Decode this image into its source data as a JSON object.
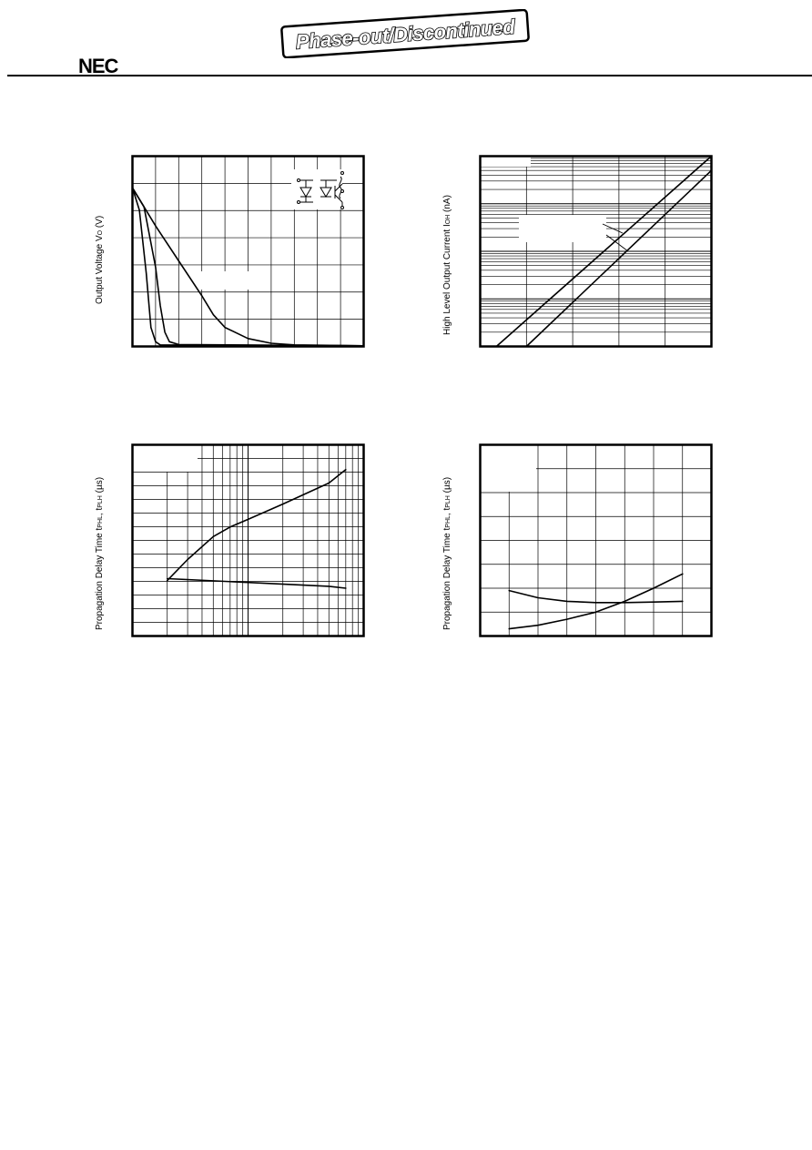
{
  "header": {
    "logo_text": "NEC",
    "stamp_text": "Phase-out/Discontinued"
  },
  "chart_data": [
    {
      "id": "output-voltage",
      "type": "line",
      "title": "",
      "ylabel": "Output Voltage V",
      "ylabel_sub": "O",
      "ylabel_unit": " (V)",
      "xlabel": "",
      "xlim": [
        0,
        10
      ],
      "ylim": [
        0,
        6
      ],
      "xscale": "linear",
      "yscale": "linear",
      "grid": true,
      "has_inset_circuit": true,
      "series": [
        {
          "x": [
            0,
            0.3,
            0.6,
            0.8,
            1.0,
            1.2,
            10
          ],
          "y": [
            5,
            4.3,
            2.3,
            0.6,
            0.15,
            0.05,
            0.02
          ]
        },
        {
          "x": [
            0,
            0.5,
            1.0,
            1.2,
            1.4,
            1.6,
            2.0,
            10
          ],
          "y": [
            5,
            4.4,
            2.5,
            1.3,
            0.45,
            0.15,
            0.06,
            0.02
          ]
        },
        {
          "x": [
            0,
            1.0,
            2.0,
            3.0,
            3.5,
            4.0,
            5.0,
            6.0,
            7.0,
            10
          ],
          "y": [
            5,
            3.8,
            2.7,
            1.6,
            1.0,
            0.6,
            0.25,
            0.1,
            0.05,
            0.02
          ]
        }
      ]
    },
    {
      "id": "high-level-output-current",
      "type": "line",
      "title": "",
      "ylabel": "High Level Output Current  I",
      "ylabel_sub": "OH",
      "ylabel_unit": " (nA)",
      "xlabel": "",
      "xlim": [
        0,
        5
      ],
      "ylim": [
        0.1,
        1000
      ],
      "xscale": "linear",
      "yscale": "log",
      "grid": true,
      "series": [
        {
          "x": [
            0.35,
            5
          ],
          "y": [
            0.1,
            1000
          ]
        },
        {
          "x": [
            1.0,
            5
          ],
          "y": [
            0.1,
            500
          ]
        }
      ]
    },
    {
      "id": "propagation-delay-vs-log",
      "type": "line",
      "title": "",
      "ylabel": "Propagation Delay Time  t",
      "ylabel_sub": "PHL",
      "ylabel_mid": ", t",
      "ylabel_sub2": "PLH",
      "ylabel_unit": " (µs)",
      "xlabel": "",
      "xlim": [
        0.1,
        10
      ],
      "ylim": [
        0,
        100
      ],
      "xscale": "log",
      "yscale": "linear",
      "grid": true,
      "series": [
        {
          "x": [
            0.2,
            0.3,
            0.5,
            0.7,
            1.0,
            2.0,
            5.0,
            7.0
          ],
          "y": [
            29,
            40,
            52,
            57,
            61,
            69,
            80,
            87
          ]
        },
        {
          "x": [
            0.2,
            1.0,
            5.0,
            7.0
          ],
          "y": [
            30,
            28,
            26,
            25
          ]
        }
      ]
    },
    {
      "id": "propagation-delay-vs-linear",
      "type": "line",
      "title": "",
      "ylabel": "Propagation Delay Time  t",
      "ylabel_sub": "PHL",
      "ylabel_mid": ", t",
      "ylabel_sub2": "PLH",
      "ylabel_unit": " (µs)",
      "xlabel": "",
      "xlim": [
        0,
        8
      ],
      "ylim": [
        0,
        8
      ],
      "xscale": "linear",
      "yscale": "linear",
      "grid": true,
      "series": [
        {
          "x": [
            1,
            2,
            3,
            4,
            5,
            6,
            7
          ],
          "y": [
            1.9,
            1.6,
            1.45,
            1.4,
            1.4,
            1.42,
            1.45
          ]
        },
        {
          "x": [
            1,
            2,
            3,
            4,
            5,
            6,
            7
          ],
          "y": [
            0.3,
            0.45,
            0.7,
            1.0,
            1.45,
            2.0,
            2.6
          ]
        }
      ]
    }
  ]
}
